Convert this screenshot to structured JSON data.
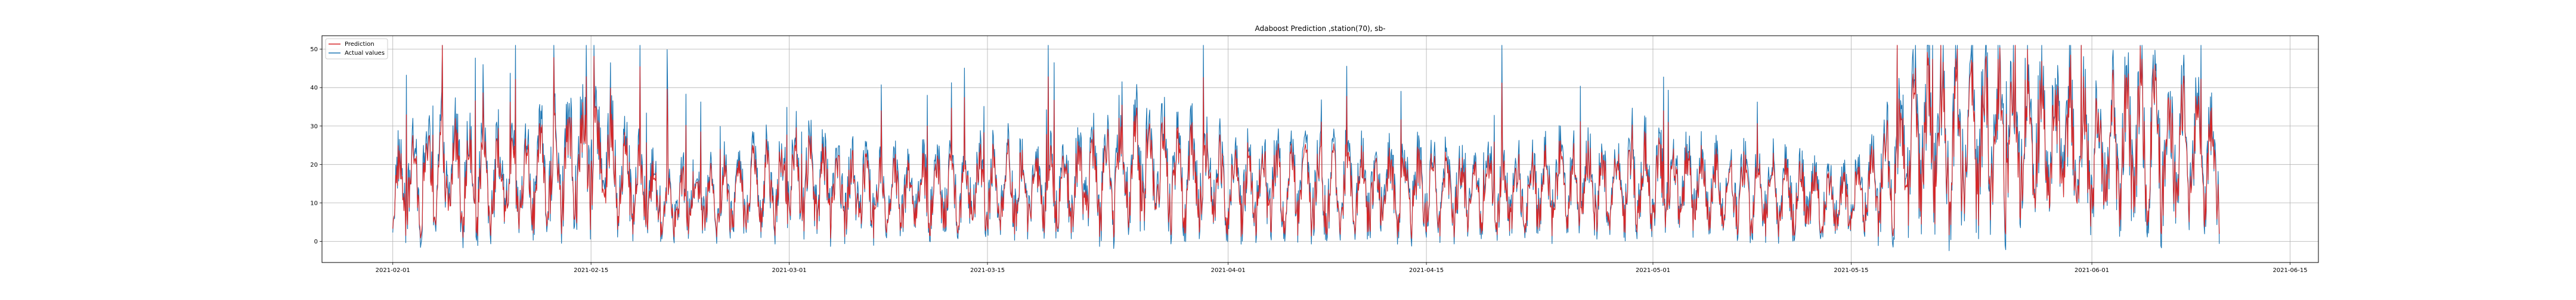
{
  "chart_data": {
    "type": "line",
    "title": "Adaboost Prediction ,station(70), sb-",
    "xlabel": "",
    "ylabel": "",
    "x_range": [
      "2021-01-27",
      "2021-06-17"
    ],
    "x_data_range": [
      "2021-02-01",
      "2021-06-10"
    ],
    "xticks": [
      "2021-02-01",
      "2021-02-15",
      "2021-03-01",
      "2021-03-15",
      "2021-04-01",
      "2021-04-15",
      "2021-05-01",
      "2021-05-15",
      "2021-06-01",
      "2021-06-15"
    ],
    "ylim": [
      -5.5,
      53.5
    ],
    "yticks": [
      0,
      10,
      20,
      30,
      40,
      50
    ],
    "grid": true,
    "legend_position": "top-left",
    "series": [
      {
        "name": "Prediction",
        "color": "#d62728",
        "x": [
          "2021-02-01",
          "2021-02-05",
          "2021-02-10",
          "2021-02-15",
          "2021-02-20",
          "2021-02-25",
          "2021-03-01",
          "2021-03-05",
          "2021-03-10",
          "2021-03-15",
          "2021-03-20",
          "2021-03-25",
          "2021-04-01",
          "2021-04-05",
          "2021-04-10",
          "2021-04-15",
          "2021-04-20",
          "2021-04-25",
          "2021-05-01",
          "2021-05-05",
          "2021-05-10",
          "2021-05-15",
          "2021-05-20",
          "2021-05-25",
          "2021-06-01",
          "2021-06-05",
          "2021-06-10"
        ],
        "values": [
          13,
          18,
          14,
          22,
          10,
          12,
          16,
          13,
          12,
          14,
          13,
          20,
          14,
          14,
          13,
          13,
          12,
          14,
          15,
          13,
          12,
          10,
          26,
          28,
          22,
          27,
          18
        ]
      },
      {
        "name": "Actual values",
        "color": "#1f77b4",
        "x": [
          "2021-02-01",
          "2021-02-05",
          "2021-02-10",
          "2021-02-15",
          "2021-02-20",
          "2021-02-25",
          "2021-03-01",
          "2021-03-05",
          "2021-03-10",
          "2021-03-15",
          "2021-03-20",
          "2021-03-25",
          "2021-04-01",
          "2021-04-05",
          "2021-04-10",
          "2021-04-15",
          "2021-04-20",
          "2021-04-25",
          "2021-05-01",
          "2021-05-05",
          "2021-05-10",
          "2021-05-15",
          "2021-05-20",
          "2021-05-25",
          "2021-06-01",
          "2021-06-05",
          "2021-06-10"
        ],
        "values": [
          14,
          20,
          15,
          24,
          11,
          13,
          17,
          14,
          13,
          15,
          14,
          22,
          15,
          15,
          14,
          14,
          13,
          15,
          16,
          14,
          13,
          11,
          28,
          30,
          23,
          28,
          19
        ]
      }
    ]
  }
}
